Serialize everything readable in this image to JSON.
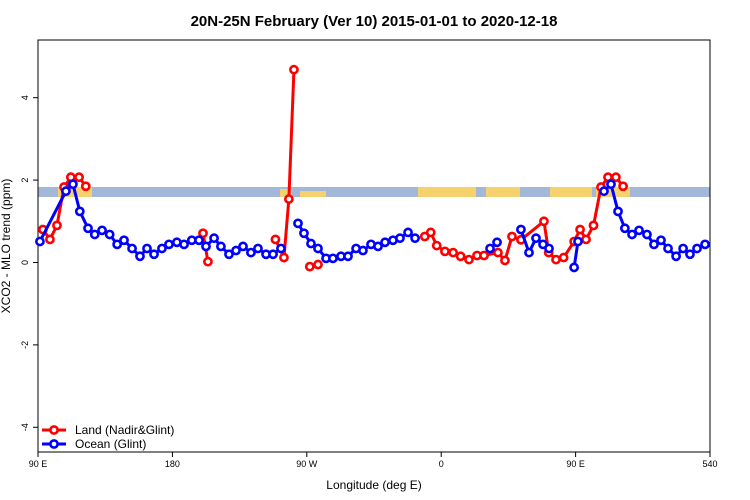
{
  "chart_data": {
    "type": "line",
    "title": "20N-25N February (Ver 10)   2015-01-01 to 2020-12-18",
    "x_label": "Longitude (deg E)",
    "y_label": "XCO2 - MLO trend (ppm)",
    "xlim": [
      90,
      540
    ],
    "ylim": [
      -4.6,
      5.4
    ],
    "xticks": [
      {
        "value": 90,
        "label": "90 E"
      },
      180,
      {
        "value": 270,
        "label": "90 W"
      },
      {
        "value": 360,
        "label": "0"
      },
      {
        "value": 450,
        "label": "90 E"
      },
      540
    ],
    "yticks": [
      -4,
      -2,
      0,
      2,
      4
    ],
    "legend": "bottomleft",
    "series": [
      {
        "name": "Land (Nadir&Glint)",
        "color": "#ff0000",
        "x": [
          93.3,
          98,
          102.7,
          107.4,
          112,
          117.5,
          122,
          null,
          200.5,
          203.8,
          null,
          249,
          254.7,
          258,
          261.4,
          null,
          272,
          277.5,
          null,
          349,
          353,
          357,
          362.5,
          368,
          373,
          378.6,
          384,
          388.7,
          398,
          402.7,
          407.4,
          413.4,
          428.8,
          432,
          436.9,
          442,
          449,
          453,
          457,
          462,
          467,
          471.7,
          477,
          481.8
        ],
        "values": [
          0.8,
          0.56,
          0.9,
          1.83,
          2.07,
          2.07,
          1.85,
          null,
          0.71,
          0.02,
          null,
          0.56,
          0.12,
          1.54,
          4.68,
          null,
          -0.1,
          -0.05,
          null,
          0.63,
          0.73,
          0.41,
          0.27,
          0.24,
          0.15,
          0.07,
          0.17,
          0.17,
          0.24,
          0.05,
          0.63,
          0.55,
          1.0,
          0.24,
          0.07,
          0.12,
          0.51,
          0.8,
          0.56,
          0.9,
          1.83,
          2.07,
          2.07,
          1.85
        ]
      },
      {
        "name": "Ocean (Glint)",
        "color": "#0000ff",
        "x": [
          91.3,
          108.7,
          113.4,
          118,
          123.5,
          128,
          132.9,
          138,
          143,
          147.6,
          153,
          158.3,
          163,
          167.7,
          173,
          177.7,
          183,
          187.8,
          193,
          197.8,
          202.5,
          207.9,
          212.5,
          217.9,
          222.6,
          227.3,
          232.6,
          237.3,
          242.7,
          247.4,
          252.7,
          null,
          264.1,
          268.1,
          272.8,
          277.5,
          282.9,
          287.5,
          292.9,
          297.6,
          303,
          307.6,
          313,
          317.7,
          322.4,
          327.7,
          332.4,
          337.8,
          342.5,
          null,
          392.7,
          397.4,
          null,
          413.4,
          418.8,
          423.5,
          428.2,
          432.2,
          null,
          449,
          451.6,
          null,
          469,
          473.7,
          478.4,
          483,
          487.8,
          492.5,
          497.8,
          502.5,
          507.2,
          511.9,
          517.3,
          522,
          526.6,
          531.3,
          536.7
        ],
        "values": [
          0.51,
          1.73,
          1.9,
          1.24,
          0.83,
          0.68,
          0.78,
          0.68,
          0.44,
          0.54,
          0.34,
          0.15,
          0.34,
          0.2,
          0.34,
          0.44,
          0.49,
          0.44,
          0.54,
          0.54,
          0.39,
          0.59,
          0.39,
          0.2,
          0.29,
          0.39,
          0.24,
          0.34,
          0.2,
          0.2,
          0.34,
          null,
          0.95,
          0.71,
          0.46,
          0.34,
          0.1,
          0.1,
          0.15,
          0.15,
          0.34,
          0.29,
          0.44,
          0.39,
          0.49,
          0.54,
          0.59,
          0.73,
          0.59,
          null,
          0.34,
          0.49,
          null,
          0.8,
          0.24,
          0.59,
          0.44,
          0.34,
          null,
          -0.12,
          0.51,
          null,
          1.73,
          1.9,
          1.24,
          0.83,
          0.68,
          0.78,
          0.68,
          0.44,
          0.54,
          0.34,
          0.15,
          0.34,
          0.2,
          0.34,
          0.44
        ]
      }
    ]
  }
}
